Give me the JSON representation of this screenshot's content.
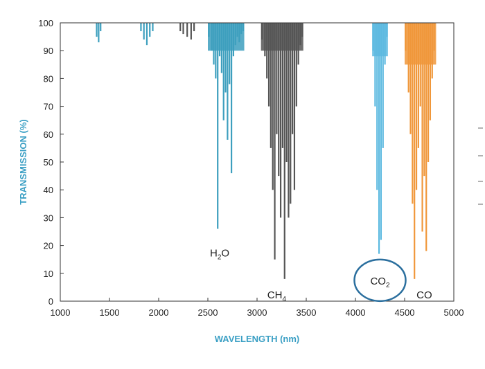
{
  "chart_data": {
    "type": "line",
    "title": "",
    "xlabel": "WAVELENGTH (nm)",
    "ylabel": "TRANSMISSION (%)",
    "xlim": [
      1000,
      5000
    ],
    "ylim": [
      0,
      100
    ],
    "xticks": [
      1000,
      1500,
      2000,
      2500,
      3000,
      3500,
      4000,
      4500,
      5000
    ],
    "yticks": [
      0,
      10,
      20,
      30,
      40,
      50,
      60,
      70,
      80,
      90,
      100
    ],
    "grid": false,
    "colors": {
      "axis_title": "#3a9fc4",
      "h2o": "#3d9fbe",
      "ch4": "#555555",
      "co2": "#5bb9e0",
      "co": "#f0973a",
      "circle": "#2b6f9e"
    },
    "series": [
      {
        "name": "H2O",
        "label": {
          "main": "H",
          "sub": "2",
          "tail": "O",
          "x": 2620,
          "y": 16
        },
        "color_key": "h2o",
        "lines": [
          [
            1370,
            95
          ],
          [
            1390,
            93
          ],
          [
            1410,
            97
          ],
          [
            1820,
            97
          ],
          [
            1850,
            94
          ],
          [
            1880,
            92
          ],
          [
            1910,
            95
          ],
          [
            1940,
            97
          ],
          [
            2510,
            95
          ],
          [
            2540,
            90
          ],
          [
            2560,
            85
          ],
          [
            2580,
            80
          ],
          [
            2600,
            26
          ],
          [
            2620,
            88
          ],
          [
            2640,
            82
          ],
          [
            2660,
            65
          ],
          [
            2680,
            75
          ],
          [
            2700,
            58
          ],
          [
            2720,
            78
          ],
          [
            2740,
            46
          ],
          [
            2760,
            88
          ],
          [
            2780,
            92
          ],
          [
            2800,
            95
          ],
          [
            2820,
            93
          ],
          [
            2840,
            96
          ],
          [
            2860,
            97
          ]
        ],
        "envelope": [
          [
            2500,
            2870,
            90
          ]
        ]
      },
      {
        "name": "CH4",
        "label": {
          "main": "CH",
          "sub": "4",
          "tail": "",
          "x": 3200,
          "y": 1
        },
        "color_key": "ch4",
        "lines": [
          [
            2220,
            97
          ],
          [
            2250,
            96
          ],
          [
            2290,
            95
          ],
          [
            2330,
            94
          ],
          [
            2360,
            97
          ],
          [
            3050,
            94
          ],
          [
            3080,
            88
          ],
          [
            3100,
            80
          ],
          [
            3120,
            70
          ],
          [
            3140,
            55
          ],
          [
            3160,
            40
          ],
          [
            3180,
            15
          ],
          [
            3200,
            60
          ],
          [
            3220,
            45
          ],
          [
            3240,
            30
          ],
          [
            3260,
            55
          ],
          [
            3280,
            8
          ],
          [
            3300,
            50
          ],
          [
            3320,
            30
          ],
          [
            3340,
            35
          ],
          [
            3360,
            60
          ],
          [
            3380,
            40
          ],
          [
            3400,
            70
          ],
          [
            3420,
            85
          ],
          [
            3440,
            92
          ],
          [
            3460,
            95
          ]
        ],
        "envelope": [
          [
            3040,
            3470,
            90
          ]
        ]
      },
      {
        "name": "CO2",
        "label": {
          "main": "CO",
          "sub": "2",
          "tail": "",
          "x": 4250,
          "y": 6
        },
        "color_key": "co2",
        "lines": [
          [
            4180,
            90
          ],
          [
            4200,
            70
          ],
          [
            4220,
            40
          ],
          [
            4240,
            17
          ],
          [
            4260,
            22
          ],
          [
            4280,
            55
          ],
          [
            4300,
            85
          ],
          [
            4320,
            95
          ]
        ],
        "envelope": [
          [
            4170,
            4330,
            88
          ]
        ]
      },
      {
        "name": "CO",
        "label": {
          "main": "CO",
          "sub": "",
          "tail": "",
          "x": 4700,
          "y": 1
        },
        "color_key": "co",
        "lines": [
          [
            4510,
            90
          ],
          [
            4540,
            75
          ],
          [
            4560,
            60
          ],
          [
            4580,
            35
          ],
          [
            4600,
            8
          ],
          [
            4620,
            40
          ],
          [
            4640,
            55
          ],
          [
            4660,
            70
          ],
          [
            4680,
            25
          ],
          [
            4700,
            45
          ],
          [
            4720,
            18
          ],
          [
            4740,
            50
          ],
          [
            4760,
            65
          ],
          [
            4780,
            80
          ],
          [
            4800,
            90
          ]
        ],
        "envelope": [
          [
            4500,
            4820,
            85
          ]
        ]
      }
    ],
    "annotations": [
      {
        "type": "circle",
        "target": "CO2",
        "cx": 4250,
        "cy": 7.5
      }
    ]
  }
}
